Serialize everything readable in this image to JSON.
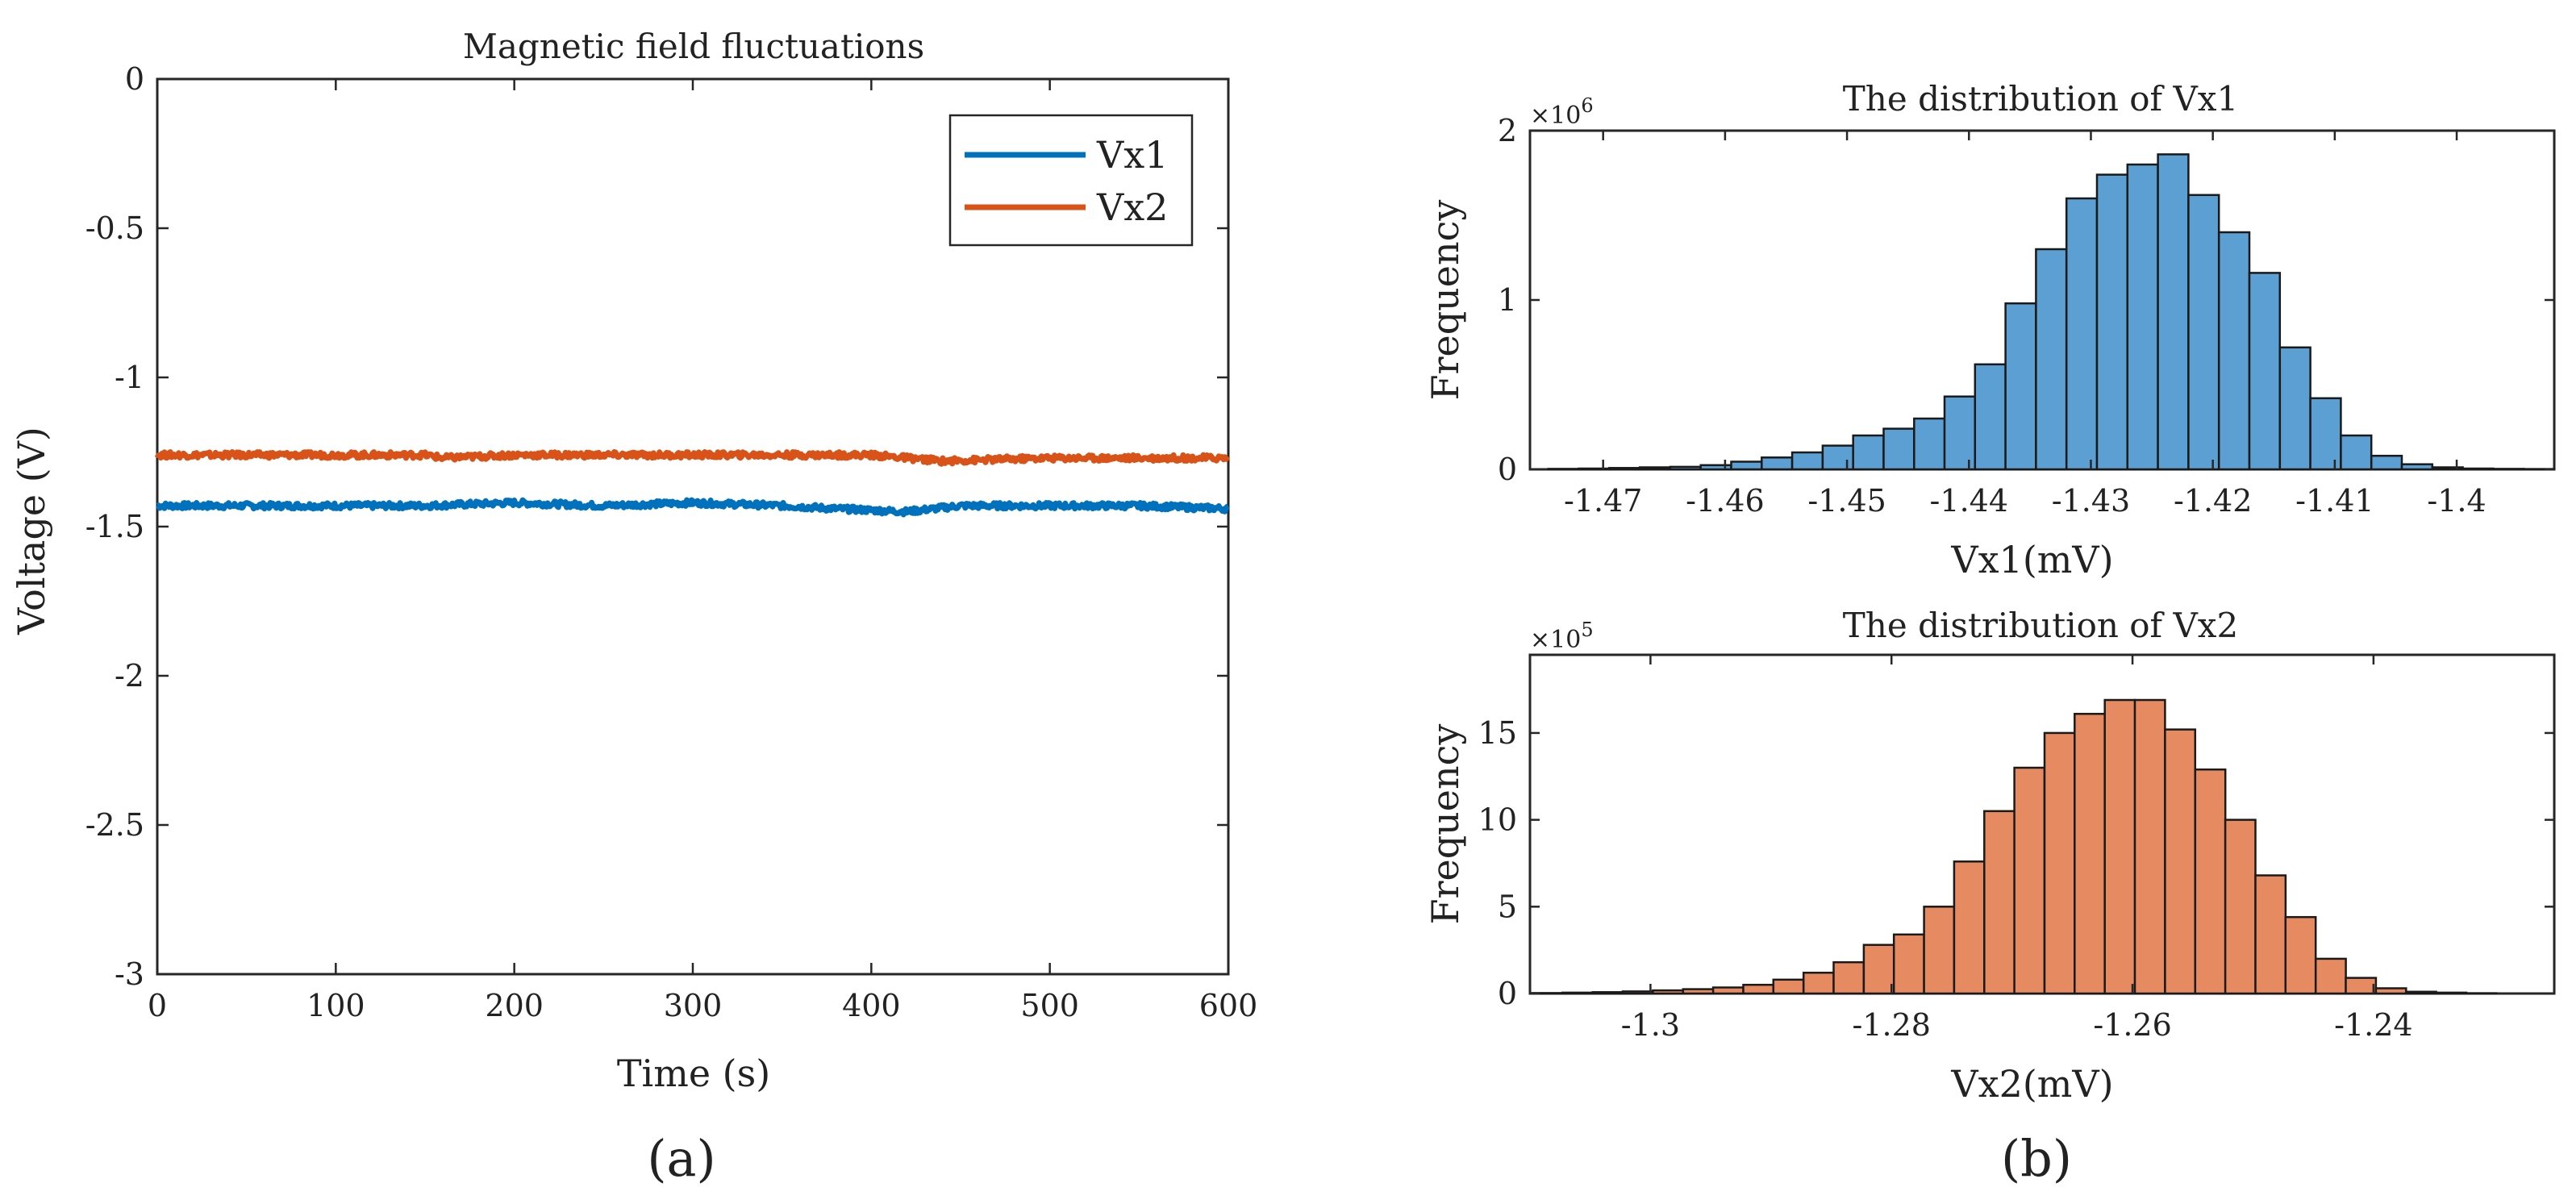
{
  "colors": {
    "vx1": "#0072BD",
    "vx2": "#D95319",
    "hist1_fill": "#5B9FD3",
    "hist2_fill": "#E68A62",
    "axis": "#262626"
  },
  "panel_a": {
    "caption": "(a)"
  },
  "panel_b": {
    "caption": "(b)"
  },
  "chart_data": [
    {
      "type": "line",
      "title": "Magnetic field fluctuations",
      "xlabel": "Time (s)",
      "ylabel": "Voltage (V)",
      "xlim": [
        0,
        600
      ],
      "ylim": [
        -3,
        0
      ],
      "xticks": [
        "0",
        "100",
        "200",
        "300",
        "400",
        "500",
        "600"
      ],
      "yticks": [
        "0",
        "-0.5",
        "-1",
        "-1.5",
        "-2",
        "-2.5",
        "-3"
      ],
      "legend": {
        "position": "top-right",
        "entries": [
          "Vx1",
          "Vx2"
        ]
      },
      "series": [
        {
          "name": "Vx1",
          "x": [
            0,
            50,
            100,
            150,
            200,
            250,
            300,
            350,
            380,
            420,
            450,
            500,
            550,
            600
          ],
          "values": [
            -1.43,
            -1.43,
            -1.43,
            -1.43,
            -1.42,
            -1.43,
            -1.42,
            -1.43,
            -1.44,
            -1.45,
            -1.43,
            -1.43,
            -1.43,
            -1.44
          ]
        },
        {
          "name": "Vx2",
          "x": [
            0,
            50,
            100,
            150,
            160,
            200,
            250,
            300,
            350,
            400,
            440,
            500,
            550,
            600
          ],
          "values": [
            -1.26,
            -1.26,
            -1.26,
            -1.26,
            -1.27,
            -1.26,
            -1.26,
            -1.26,
            -1.26,
            -1.26,
            -1.28,
            -1.27,
            -1.27,
            -1.27
          ]
        }
      ]
    },
    {
      "type": "bar",
      "title": "The distribution of Vx1",
      "xlabel": "Vx1(mV)",
      "ylabel": "Frequency",
      "multiplier": "×10",
      "multiplier_exp": "6",
      "xlim": [
        -1.476,
        -1.392
      ],
      "ylim": [
        0,
        2
      ],
      "xticks": [
        -1.47,
        -1.46,
        -1.45,
        -1.44,
        -1.43,
        -1.42,
        -1.41,
        -1.4
      ],
      "xtick_labels": [
        "-1.47",
        "-1.46",
        "-1.45",
        "-1.44",
        "-1.43",
        "-1.42",
        "-1.41",
        "-1.4"
      ],
      "yticks": [
        0,
        1,
        2
      ],
      "ytick_labels": [
        "0",
        "1",
        "2"
      ],
      "bin_start": -1.4745,
      "bin_width": 0.0025,
      "values": [
        0.003,
        0.005,
        0.008,
        0.012,
        0.015,
        0.025,
        0.045,
        0.07,
        0.1,
        0.14,
        0.2,
        0.24,
        0.3,
        0.43,
        0.62,
        0.98,
        1.3,
        1.6,
        1.74,
        1.8,
        1.86,
        1.62,
        1.4,
        1.16,
        0.72,
        0.42,
        0.2,
        0.08,
        0.03,
        0.012,
        0.005,
        0.003,
        0.002
      ]
    },
    {
      "type": "bar",
      "title": "The distribution of Vx2",
      "xlabel": "Vx2(mV)",
      "ylabel": "Frequency",
      "multiplier": "×10",
      "multiplier_exp": "5",
      "xlim": [
        -1.31,
        -1.225
      ],
      "ylim": [
        0,
        19.5
      ],
      "xticks": [
        -1.3,
        -1.28,
        -1.26,
        -1.24
      ],
      "xtick_labels": [
        "-1.3",
        "-1.28",
        "-1.26",
        "-1.24"
      ],
      "yticks": [
        0,
        5,
        10,
        15
      ],
      "ytick_labels": [
        "0",
        "5",
        "10",
        "15"
      ],
      "bin_start": -1.3098,
      "bin_width": 0.0025,
      "values": [
        0.03,
        0.05,
        0.08,
        0.12,
        0.18,
        0.25,
        0.35,
        0.5,
        0.8,
        1.2,
        1.8,
        2.8,
        3.4,
        5,
        7.6,
        10.5,
        13,
        15,
        16.1,
        16.9,
        16.9,
        15.2,
        12.9,
        10,
        6.8,
        4.4,
        2,
        0.9,
        0.3,
        0.1,
        0.05,
        0.02
      ]
    }
  ]
}
